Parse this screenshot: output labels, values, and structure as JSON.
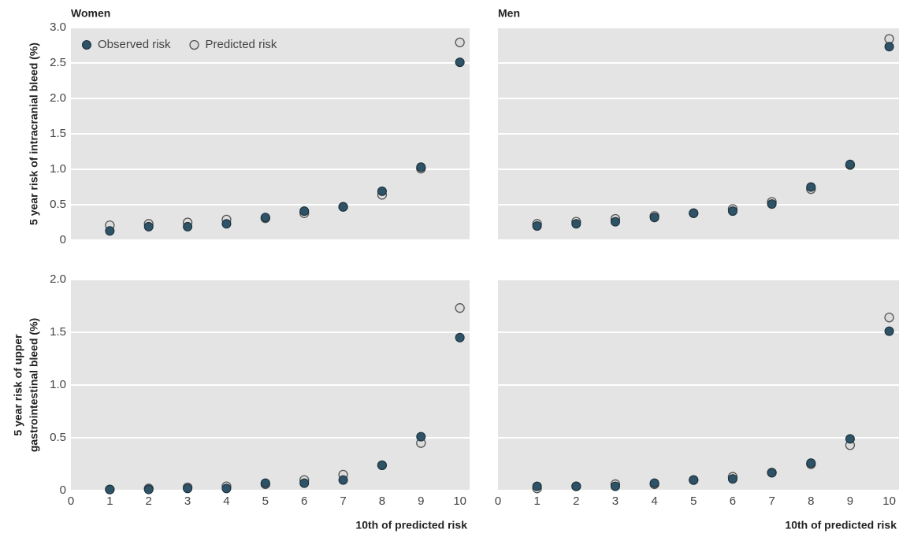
{
  "chart_data": [
    {
      "type": "scatter",
      "title": "Women",
      "ylabel": "5 year risk of intracranial bleed (%)",
      "x": [
        1,
        2,
        3,
        4,
        5,
        6,
        7,
        8,
        9,
        10
      ],
      "series": [
        {
          "name": "Observed risk",
          "color": "#2e5266",
          "values": [
            0.13,
            0.19,
            0.19,
            0.23,
            0.32,
            0.41,
            0.47,
            0.69,
            1.03,
            2.51
          ]
        },
        {
          "name": "Predicted risk",
          "color": "#dcdcdc",
          "values": [
            0.21,
            0.23,
            0.25,
            0.29,
            0.31,
            0.38,
            0.47,
            0.64,
            1.01,
            2.79
          ]
        }
      ],
      "xlim": [
        0,
        10.25
      ],
      "ylim": [
        0,
        3
      ],
      "yticks": [
        0,
        {
          "value": 0.5,
          "label": "0.5"
        },
        {
          "value": 1,
          "label": "1.0"
        },
        {
          "value": 1.5,
          "label": "1.5"
        },
        {
          "value": 2,
          "label": "2.0"
        },
        {
          "value": 2.5,
          "label": "2.5"
        },
        {
          "value": 3,
          "label": "3.0"
        }
      ],
      "ytick_labels": true,
      "grid": true,
      "legend": "upper left"
    },
    {
      "type": "scatter",
      "title": "Men",
      "x": [
        1,
        2,
        3,
        4,
        5,
        6,
        7,
        8,
        9,
        10
      ],
      "series": [
        {
          "name": "Observed risk",
          "color": "#2e5266",
          "values": [
            0.2,
            0.23,
            0.26,
            0.32,
            0.38,
            0.41,
            0.51,
            0.75,
            1.07,
            2.73
          ]
        },
        {
          "name": "Predicted risk",
          "color": "#dcdcdc",
          "values": [
            0.23,
            0.26,
            0.3,
            0.34,
            0.38,
            0.44,
            0.54,
            0.72,
            1.06,
            2.84
          ]
        }
      ],
      "xlim": [
        0,
        10.25
      ],
      "ylim": [
        0,
        3
      ],
      "yticks": [
        0,
        0.5,
        1,
        1.5,
        2,
        2.5,
        3
      ],
      "ytick_labels": false,
      "grid": true
    },
    {
      "type": "scatter",
      "ylabel": [
        "5 year risk of upper",
        "gastrointestinal bleed (%)"
      ],
      "xlabel": "10th of predicted risk",
      "x": [
        1,
        2,
        3,
        4,
        5,
        6,
        7,
        8,
        9,
        10
      ],
      "series": [
        {
          "name": "Observed risk",
          "color": "#2e5266",
          "values": [
            0.01,
            0.01,
            0.02,
            0.02,
            0.07,
            0.07,
            0.1,
            0.24,
            0.51,
            1.45
          ]
        },
        {
          "name": "Predicted risk",
          "color": "#dcdcdc",
          "values": [
            0.01,
            0.02,
            0.03,
            0.04,
            0.06,
            0.1,
            0.15,
            0.24,
            0.45,
            1.73
          ]
        }
      ],
      "xlim": [
        0,
        10.25
      ],
      "ylim": [
        0,
        2
      ],
      "xticks": [
        0,
        1,
        2,
        3,
        4,
        5,
        6,
        7,
        8,
        9,
        10
      ],
      "yticks": [
        0,
        {
          "value": 0.5,
          "label": "0.5"
        },
        {
          "value": 1,
          "label": "1.0"
        },
        {
          "value": 1.5,
          "label": "1.5"
        },
        {
          "value": 2,
          "label": "2.0"
        }
      ],
      "ytick_labels": true,
      "grid": true
    },
    {
      "type": "scatter",
      "xlabel": "10th of predicted risk",
      "x": [
        1,
        2,
        3,
        4,
        5,
        6,
        7,
        8,
        9,
        10
      ],
      "series": [
        {
          "name": "Observed risk",
          "color": "#2e5266",
          "values": [
            0.04,
            0.04,
            0.04,
            0.07,
            0.1,
            0.11,
            0.17,
            0.26,
            0.49,
            1.51
          ]
        },
        {
          "name": "Predicted risk",
          "color": "#dcdcdc",
          "values": [
            0.02,
            0.04,
            0.06,
            0.06,
            0.1,
            0.13,
            0.17,
            0.25,
            0.43,
            1.64
          ]
        }
      ],
      "xlim": [
        0,
        10.25
      ],
      "ylim": [
        0,
        2
      ],
      "xticks": [
        0,
        1,
        2,
        3,
        4,
        5,
        6,
        7,
        8,
        9,
        10
      ],
      "yticks": [
        0,
        0.5,
        1,
        1.5,
        2
      ],
      "ytick_labels": false,
      "grid": true
    }
  ]
}
